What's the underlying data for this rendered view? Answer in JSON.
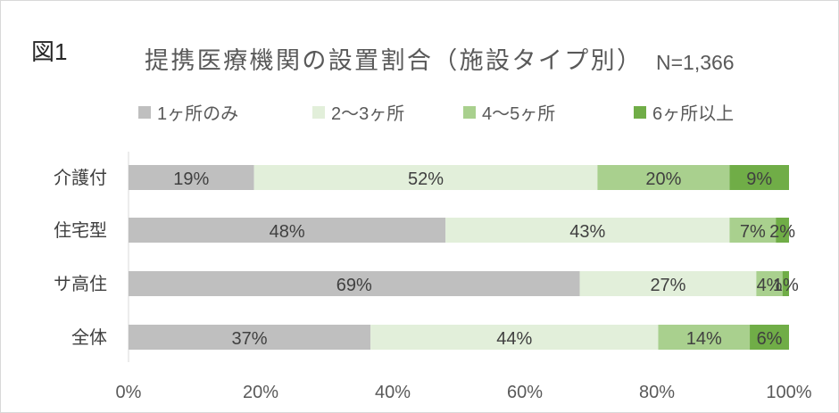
{
  "figure_label": "図1",
  "chart_data": {
    "type": "bar",
    "orientation": "horizontal",
    "stacked": "percent",
    "title": "提携医療機関の設置割合（施設タイプ別）",
    "subtitle": "N=1,366",
    "categories": [
      "介護付",
      "住宅型",
      "サ高住",
      "全体"
    ],
    "series": [
      {
        "name": "1ヶ所のみ",
        "color": "#BFBFBF",
        "values": [
          19,
          48,
          69,
          37
        ]
      },
      {
        "name": "2〜3ヶ所",
        "color": "#E2EFDA",
        "values": [
          52,
          43,
          27,
          44
        ]
      },
      {
        "name": "4〜5ヶ所",
        "color": "#A9D08E",
        "values": [
          20,
          7,
          4,
          14
        ]
      },
      {
        "name": "6ヶ所以上",
        "color": "#70AD47",
        "values": [
          9,
          2,
          1,
          6
        ]
      }
    ],
    "value_unit": "%",
    "xticks": [
      "0%",
      "20%",
      "40%",
      "60%",
      "80%",
      "100%"
    ],
    "xlim": [
      0,
      100
    ],
    "legend": "top",
    "grid": false
  }
}
